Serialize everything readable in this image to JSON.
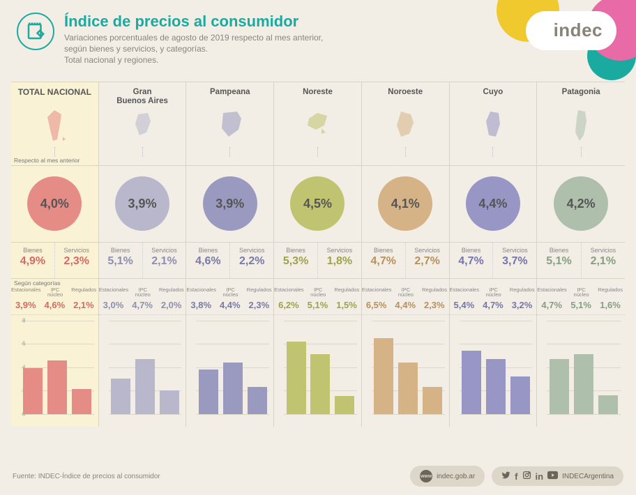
{
  "header": {
    "title": "Índice de precios al consumidor",
    "subtitle_l1": "Variaciones porcentuales de agosto de 2019 respecto al mes anterior,",
    "subtitle_l2": "según bienes y servicios, y categorías.",
    "subtitle_l3": "Total nacional y regiones.",
    "logo": "indec"
  },
  "labels": {
    "respecto": "Respecto al mes anterior",
    "bienes": "Bienes",
    "servicios": "Servicios",
    "segun": "Según categorías",
    "cat1": "Estacionales",
    "cat2": "IPC núcleo",
    "cat3": "Regulados"
  },
  "chart_axis": {
    "ymax": 8,
    "ticks": [
      0,
      2,
      4,
      6,
      8
    ]
  },
  "regions": [
    {
      "name": "TOTAL NACIONAL",
      "featured": true,
      "color": "#e58c87",
      "text_color": "#d46a64",
      "total": "4,0%",
      "bienes": "4,9%",
      "servicios": "2,3%",
      "cats_str": [
        "3,9%",
        "4,6%",
        "2,1%"
      ],
      "cats": [
        3.9,
        4.6,
        2.1
      ]
    },
    {
      "name": "Gran Buenos Aires",
      "color": "#b8b7cc",
      "text_color": "#8f8eae",
      "total": "3,9%",
      "bienes": "5,1%",
      "servicios": "2,1%",
      "cats_str": [
        "3,0%",
        "4,7%",
        "2,0%"
      ],
      "cats": [
        3.0,
        4.7,
        2.0
      ]
    },
    {
      "name": "Pampeana",
      "color": "#9a99bf",
      "text_color": "#7a79a5",
      "total": "3,9%",
      "bienes": "4,6%",
      "servicios": "2,2%",
      "cats_str": [
        "3,8%",
        "4,4%",
        "2,3%"
      ],
      "cats": [
        3.8,
        4.4,
        2.3
      ]
    },
    {
      "name": "Noreste",
      "color": "#c0c471",
      "text_color": "#9ea24c",
      "total": "4,5%",
      "bienes": "5,3%",
      "servicios": "1,8%",
      "cats_str": [
        "6,2%",
        "5,1%",
        "1,5%"
      ],
      "cats": [
        6.2,
        5.1,
        1.5
      ]
    },
    {
      "name": "Noroeste",
      "color": "#d6b386",
      "text_color": "#b8905c",
      "total": "4,1%",
      "bienes": "4,7%",
      "servicios": "2,7%",
      "cats_str": [
        "6,5%",
        "4,4%",
        "2,3%"
      ],
      "cats": [
        6.5,
        4.4,
        2.3
      ]
    },
    {
      "name": "Cuyo",
      "color": "#9896c5",
      "text_color": "#7674ab",
      "total": "4,4%",
      "bienes": "4,7%",
      "servicios": "3,7%",
      "cats_str": [
        "5,4%",
        "4,7%",
        "3,2%"
      ],
      "cats": [
        5.4,
        4.7,
        3.2
      ]
    },
    {
      "name": "Patagonia",
      "color": "#aebfab",
      "text_color": "#869e82",
      "total": "4,2%",
      "bienes": "5,1%",
      "servicios": "2,1%",
      "cats_str": [
        "4,7%",
        "5,1%",
        "1,6%"
      ],
      "cats": [
        4.7,
        5.1,
        1.6
      ]
    }
  ],
  "footer": {
    "source": "Fuente: INDEC-Índice de precios al consumidor",
    "url": "indec.gob.ar",
    "social": "INDECArgentina"
  },
  "style": {
    "background": "#f2eee6",
    "accent": "#1aaaa0",
    "blob_yellow": "#f0c92f",
    "blob_pink": "#e86aa6",
    "blob_teal": "#1aaaa0",
    "logo_bg": "#ffffff"
  }
}
